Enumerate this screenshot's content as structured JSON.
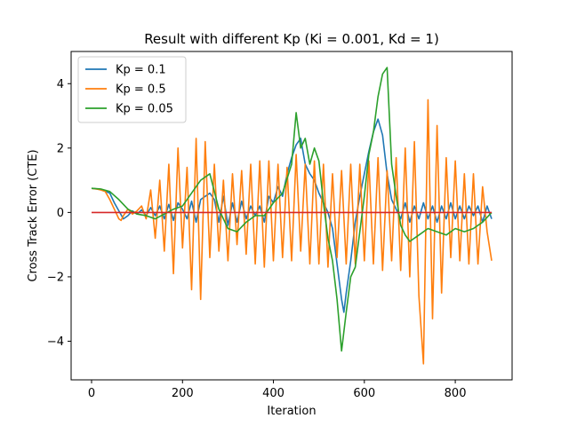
{
  "chart_data": {
    "type": "line",
    "title": "Result with different Kp (Ki = 0.001, Kd = 1)",
    "xlabel": "Iteration",
    "ylabel": "Cross Track Error (CTE)",
    "xlim": [
      -45,
      925
    ],
    "ylim": [
      -5.2,
      5.0
    ],
    "x_ticks": [
      0,
      200,
      400,
      600,
      800
    ],
    "y_ticks": [
      -4,
      -2,
      0,
      2,
      4
    ],
    "x_tick_labels": [
      "0",
      "200",
      "400",
      "600",
      "800"
    ],
    "y_tick_labels": [
      "−4",
      "−2",
      "0",
      "2",
      "4"
    ],
    "legend_position": "top-left",
    "grid": false,
    "series": [
      {
        "name": "Kp = 0.1",
        "color": "#1f77b4",
        "x": [
          0,
          20,
          40,
          50,
          60,
          70,
          80,
          90,
          100,
          110,
          120,
          130,
          140,
          150,
          160,
          170,
          180,
          190,
          200,
          210,
          220,
          230,
          240,
          250,
          260,
          270,
          280,
          290,
          300,
          310,
          320,
          330,
          340,
          350,
          360,
          370,
          380,
          390,
          400,
          410,
          420,
          430,
          440,
          450,
          460,
          470,
          480,
          490,
          500,
          510,
          520,
          530,
          540,
          550,
          555,
          560,
          570,
          580,
          590,
          600,
          610,
          620,
          630,
          640,
          650,
          660,
          670,
          680,
          690,
          700,
          710,
          720,
          730,
          740,
          750,
          760,
          770,
          780,
          790,
          800,
          810,
          820,
          830,
          840,
          850,
          860,
          870,
          880
        ],
        "y": [
          0.75,
          0.72,
          0.6,
          0.3,
          0.05,
          -0.2,
          -0.1,
          0.05,
          -0.05,
          0.08,
          -0.1,
          0.15,
          -0.1,
          0.2,
          -0.2,
          0.25,
          -0.25,
          0.3,
          0.1,
          -0.2,
          0.35,
          -0.3,
          0.4,
          0.5,
          0.6,
          0.4,
          -0.3,
          0.5,
          -0.4,
          0.3,
          -0.3,
          0.35,
          -0.2,
          0.2,
          -0.1,
          0.2,
          -0.3,
          0.5,
          0.3,
          0.8,
          0.5,
          1.2,
          1.7,
          2.1,
          2.3,
          1.5,
          1.2,
          1.0,
          0.6,
          0.3,
          0.0,
          -0.5,
          -1.6,
          -2.7,
          -3.1,
          -2.5,
          -1.5,
          -0.3,
          0.5,
          1.2,
          1.9,
          2.5,
          2.9,
          2.4,
          1.2,
          0.4,
          0.1,
          -0.2,
          0.3,
          -0.3,
          0.2,
          -0.2,
          0.3,
          -0.2,
          0.2,
          -0.3,
          0.2,
          -0.2,
          0.3,
          -0.2,
          0.2,
          -0.2,
          0.2,
          -0.1,
          0.2,
          -0.3,
          0.2,
          -0.2
        ]
      },
      {
        "name": "Kp = 0.5",
        "color": "#ff7f0e",
        "x": [
          0,
          10,
          20,
          30,
          40,
          50,
          60,
          65,
          70,
          80,
          90,
          100,
          110,
          120,
          130,
          140,
          150,
          160,
          170,
          180,
          190,
          200,
          210,
          220,
          230,
          240,
          250,
          260,
          270,
          280,
          290,
          300,
          310,
          320,
          330,
          340,
          350,
          360,
          370,
          380,
          390,
          400,
          410,
          420,
          430,
          440,
          450,
          460,
          470,
          480,
          490,
          500,
          510,
          520,
          530,
          540,
          550,
          560,
          570,
          580,
          590,
          600,
          610,
          620,
          630,
          640,
          650,
          660,
          670,
          680,
          690,
          700,
          710,
          720,
          730,
          740,
          750,
          760,
          770,
          780,
          790,
          800,
          810,
          820,
          830,
          840,
          850,
          860,
          870,
          880
        ],
        "y": [
          0.75,
          0.73,
          0.7,
          0.65,
          0.4,
          0.1,
          -0.2,
          -0.25,
          -0.1,
          0.1,
          -0.05,
          0.05,
          0.2,
          -0.2,
          0.7,
          -0.8,
          1.0,
          -1.2,
          1.5,
          -1.9,
          2.0,
          -1.1,
          1.4,
          -2.4,
          2.3,
          -2.7,
          2.2,
          -1.4,
          1.5,
          -1.2,
          1.0,
          -1.5,
          1.2,
          -1.0,
          1.3,
          -1.3,
          1.5,
          -1.6,
          1.6,
          -1.7,
          1.6,
          -1.5,
          1.5,
          -1.4,
          1.4,
          -1.5,
          1.8,
          -1.2,
          1.5,
          -1.6,
          1.6,
          -1.6,
          1.5,
          -1.7,
          1.2,
          -1.4,
          1.3,
          -1.6,
          1.5,
          -1.6,
          1.5,
          -1.5,
          1.6,
          -1.6,
          1.7,
          -1.8,
          1.3,
          -1.5,
          1.7,
          -1.8,
          2.0,
          -2.0,
          2.2,
          -2.6,
          -4.7,
          3.5,
          -3.3,
          2.7,
          -2.5,
          1.7,
          -1.4,
          1.6,
          -1.5,
          1.2,
          -1.6,
          1.2,
          -1.6,
          0.8,
          -0.6,
          -1.5
        ]
      },
      {
        "name": "Kp = 0.05",
        "color": "#2ca02c",
        "x": [
          0,
          20,
          40,
          60,
          80,
          100,
          120,
          140,
          160,
          180,
          200,
          220,
          240,
          260,
          280,
          300,
          320,
          340,
          360,
          380,
          400,
          420,
          440,
          450,
          460,
          470,
          480,
          490,
          500,
          510,
          520,
          530,
          540,
          550,
          560,
          570,
          580,
          590,
          600,
          610,
          620,
          630,
          640,
          650,
          660,
          670,
          680,
          690,
          700,
          720,
          740,
          760,
          780,
          800,
          820,
          840,
          860,
          880
        ],
        "y": [
          0.75,
          0.73,
          0.65,
          0.4,
          0.1,
          -0.05,
          -0.1,
          -0.2,
          -0.05,
          0.1,
          0.2,
          0.6,
          1.0,
          1.2,
          0.1,
          -0.5,
          -0.6,
          -0.3,
          -0.1,
          -0.1,
          0.3,
          0.6,
          1.5,
          3.1,
          2.0,
          2.3,
          1.5,
          2.0,
          1.6,
          0.3,
          -0.8,
          -1.5,
          -2.7,
          -4.3,
          -3.1,
          -2.0,
          -1.7,
          -0.6,
          0.5,
          1.8,
          2.5,
          3.6,
          4.3,
          4.5,
          1.5,
          0.5,
          -0.4,
          -0.7,
          -0.9,
          -0.7,
          -0.5,
          -0.6,
          -0.7,
          -0.5,
          -0.6,
          -0.5,
          -0.3,
          0.0
        ]
      },
      {
        "name": "",
        "color": "#d62728",
        "x": [
          0,
          880
        ],
        "y": [
          0,
          0
        ]
      }
    ]
  }
}
